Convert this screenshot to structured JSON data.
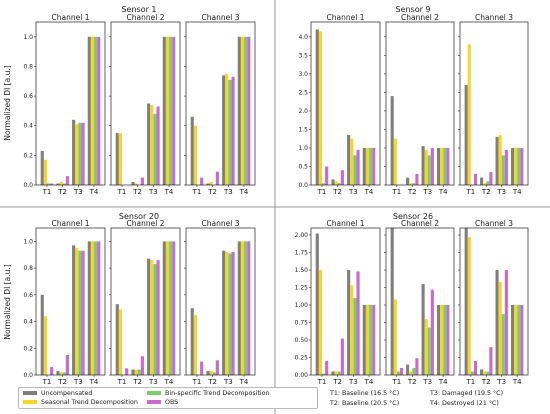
{
  "colors": {
    "uncompensated": "#7f7f7f",
    "seasonal": "#f5d52a",
    "binspecific": "#7fcc6e",
    "obs": "#c86ad2"
  },
  "legend": {
    "items": [
      {
        "name": "Uncompensated",
        "color": "#7f7f7f"
      },
      {
        "name": "Bin-specific Trend Decomposition",
        "color": "#7fcc6e"
      },
      {
        "name": "Seasonal Trend Decomposition",
        "color": "#f5d52a"
      },
      {
        "name": "OBS",
        "color": "#c86ad2"
      }
    ]
  },
  "notes": [
    "T1: Baseline (16.5 °C)",
    "T3: Damaged (19.5 °C)",
    "T2: Baseline (20.5 °C)",
    "T4: Destroyed (21 °C)"
  ],
  "chart_data": [
    {
      "type": "bar",
      "title": "Sensor 1",
      "ylabel": "Normalized DI [a.u.]",
      "ylim": [
        0,
        1.1
      ],
      "yticks": [
        "0.0",
        "0.2",
        "0.4",
        "0.6",
        "0.8",
        "1.0"
      ],
      "ytick_values": [
        0,
        0.2,
        0.4,
        0.6,
        0.8,
        1.0
      ],
      "categories": [
        "T1",
        "T2",
        "T3",
        "T4"
      ],
      "series_names": [
        "Uncompensated",
        "Seasonal Trend Decomposition",
        "Bin-specific Trend Decomposition",
        "OBS"
      ],
      "channels": [
        {
          "title": "Channel 1",
          "values": [
            [
              0.23,
              0.01,
              0.44,
              1.0
            ],
            [
              0.17,
              0.02,
              0.41,
              1.0
            ],
            [
              0.01,
              0.01,
              0.42,
              1.0
            ],
            [
              0.01,
              0.06,
              0.42,
              1.0
            ]
          ]
        },
        {
          "title": "Channel 2",
          "values": [
            [
              0.35,
              0.02,
              0.55,
              1.0
            ],
            [
              0.35,
              0.01,
              0.54,
              1.0
            ],
            [
              0.0,
              0.0,
              0.48,
              1.0
            ],
            [
              0.0,
              0.05,
              0.53,
              1.0
            ]
          ]
        },
        {
          "title": "Channel 3",
          "values": [
            [
              0.46,
              0.01,
              0.74,
              1.0
            ],
            [
              0.4,
              0.02,
              0.75,
              1.0
            ],
            [
              0.0,
              0.0,
              0.71,
              1.0
            ],
            [
              0.05,
              0.09,
              0.73,
              1.0
            ]
          ]
        }
      ]
    },
    {
      "type": "bar",
      "title": "Sensor 9",
      "ylabel": "",
      "ylim": [
        0,
        4.4
      ],
      "yticks": [
        "0.0",
        "0.5",
        "1.0",
        "1.5",
        "2.0",
        "2.5",
        "3.0",
        "3.5",
        "4.0"
      ],
      "ytick_values": [
        0,
        0.5,
        1.0,
        1.5,
        2.0,
        2.5,
        3.0,
        3.5,
        4.0
      ],
      "categories": [
        "T1",
        "T2",
        "T3",
        "T4"
      ],
      "series_names": [
        "Uncompensated",
        "Seasonal Trend Decomposition",
        "Bin-specific Trend Decomposition",
        "OBS"
      ],
      "channels": [
        {
          "title": "Channel 1",
          "values": [
            [
              4.2,
              0.15,
              1.35,
              1.0
            ],
            [
              4.15,
              0.1,
              1.25,
              1.0
            ],
            [
              0.05,
              0.05,
              0.8,
              1.0
            ],
            [
              0.5,
              0.4,
              0.95,
              1.0
            ]
          ]
        },
        {
          "title": "Channel 2",
          "values": [
            [
              2.4,
              0.2,
              1.05,
              1.0
            ],
            [
              1.25,
              0.05,
              0.95,
              1.0
            ],
            [
              0.0,
              0.05,
              0.8,
              1.0
            ],
            [
              0.0,
              0.3,
              1.0,
              1.0
            ]
          ]
        },
        {
          "title": "Channel 3",
          "values": [
            [
              2.7,
              0.2,
              1.3,
              1.0
            ],
            [
              3.8,
              0.05,
              1.35,
              1.0
            ],
            [
              0.0,
              0.1,
              0.8,
              1.0
            ],
            [
              0.3,
              0.35,
              0.95,
              1.0
            ]
          ]
        }
      ]
    },
    {
      "type": "bar",
      "title": "Sensor 20",
      "ylabel": "Normalized DI [a.u.]",
      "ylim": [
        0,
        1.1
      ],
      "yticks": [
        "0.0",
        "0.2",
        "0.4",
        "0.6",
        "0.8",
        "1.0"
      ],
      "ytick_values": [
        0,
        0.2,
        0.4,
        0.6,
        0.8,
        1.0
      ],
      "categories": [
        "T1",
        "T2",
        "T3",
        "T4"
      ],
      "series_names": [
        "Uncompensated",
        "Seasonal Trend Decomposition",
        "Bin-specific Trend Decomposition",
        "OBS"
      ],
      "channels": [
        {
          "title": "Channel 1",
          "values": [
            [
              0.6,
              0.03,
              0.97,
              1.0
            ],
            [
              0.44,
              0.02,
              0.95,
              1.0
            ],
            [
              0.0,
              0.02,
              0.93,
              1.0
            ],
            [
              0.06,
              0.15,
              0.93,
              1.0
            ]
          ]
        },
        {
          "title": "Channel 2",
          "values": [
            [
              0.53,
              0.04,
              0.87,
              1.0
            ],
            [
              0.49,
              0.04,
              0.86,
              1.0
            ],
            [
              0.0,
              0.04,
              0.83,
              1.0
            ],
            [
              0.05,
              0.14,
              0.86,
              1.0
            ]
          ]
        },
        {
          "title": "Channel 3",
          "values": [
            [
              0.5,
              0.03,
              0.93,
              1.0
            ],
            [
              0.45,
              0.03,
              0.92,
              1.0
            ],
            [
              0.0,
              0.02,
              0.91,
              1.0
            ],
            [
              0.1,
              0.11,
              0.92,
              1.0
            ]
          ]
        }
      ]
    },
    {
      "type": "bar",
      "title": "Sensor 26",
      "ylabel": "",
      "ylim": [
        0,
        2.1
      ],
      "yticks": [
        "0.00",
        "0.25",
        "0.50",
        "0.75",
        "1.00",
        "1.25",
        "1.50",
        "1.75",
        "2.00"
      ],
      "ytick_values": [
        0,
        0.25,
        0.5,
        0.75,
        1.0,
        1.25,
        1.5,
        1.75,
        2.0
      ],
      "categories": [
        "T1",
        "T2",
        "T3",
        "T4"
      ],
      "series_names": [
        "Uncompensated",
        "Seasonal Trend Decomposition",
        "Bin-specific Trend Decomposition",
        "OBS"
      ],
      "channels": [
        {
          "title": "Channel 1",
          "values": [
            [
              2.02,
              0.05,
              1.5,
              1.0
            ],
            [
              1.5,
              0.05,
              1.28,
              1.0
            ],
            [
              0.02,
              0.05,
              1.1,
              1.0
            ],
            [
              0.2,
              0.52,
              1.48,
              1.0
            ]
          ]
        },
        {
          "title": "Channel 2",
          "values": [
            [
              2.12,
              0.15,
              1.3,
              1.0
            ],
            [
              1.08,
              0.05,
              0.8,
              1.0
            ],
            [
              0.05,
              0.1,
              0.68,
              1.0
            ],
            [
              0.1,
              0.24,
              1.22,
              1.0
            ]
          ]
        },
        {
          "title": "Channel 3",
          "values": [
            [
              2.1,
              0.08,
              1.5,
              1.0
            ],
            [
              1.97,
              0.05,
              1.33,
              1.0
            ],
            [
              0.05,
              0.05,
              0.87,
              1.0
            ],
            [
              0.2,
              0.4,
              1.5,
              1.0
            ]
          ]
        }
      ]
    }
  ]
}
